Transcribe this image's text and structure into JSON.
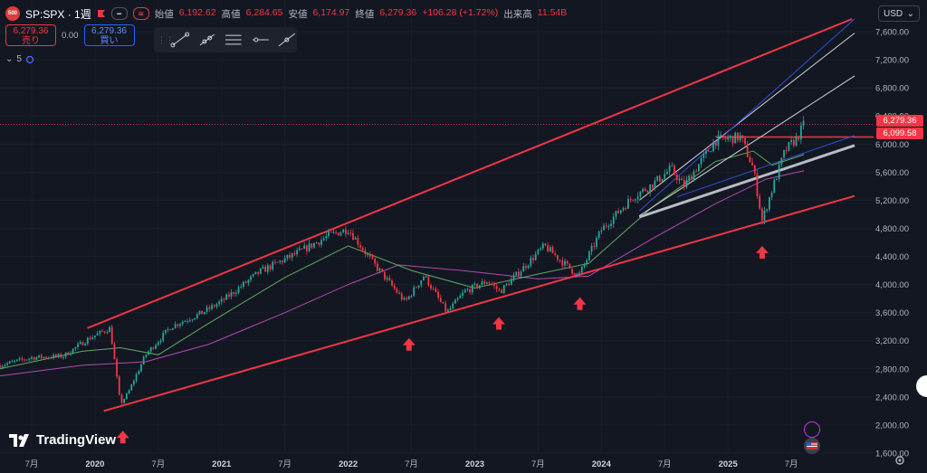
{
  "header": {
    "symbol_badge": "500",
    "symbol": "SP:SPX · 1週",
    "open_label": "始値",
    "open": "6,192.62",
    "high_label": "高値",
    "high": "6,284.65",
    "low_label": "安値",
    "low": "6,174.97",
    "close_label": "終値",
    "close": "6,279.36",
    "change": "+106.28 (+1.72%)",
    "volume_label": "出来高",
    "volume": "11.54B"
  },
  "trade": {
    "sell_price": "6,279.36",
    "sell_label": "売り",
    "spread": "0.00",
    "buy_price": "6,279.36",
    "buy_label": "買い"
  },
  "indicator_count": "5",
  "currency": "USD",
  "brand": "TradingView",
  "price_tags": {
    "last": "6,279.36",
    "line": "6,099.58"
  },
  "colors": {
    "up": "#26a69a",
    "down": "#f23645",
    "channel": "#f23645",
    "ma_fast": "#5faa5f",
    "ma_slow": "#b44bb0",
    "trend_blue": "#2f50d8",
    "trend_white": "#cfd3dc"
  },
  "chart_data": {
    "type": "candlestick",
    "timeframe": "1W",
    "x_ticks": [
      "7月",
      "2020",
      "7月",
      "2021",
      "7月",
      "2022",
      "7月",
      "2023",
      "7月",
      "2024",
      "7月",
      "2025",
      "7月"
    ],
    "x_tick_dates": [
      2019.5,
      2020.0,
      2020.5,
      2021.0,
      2021.5,
      2022.0,
      2022.5,
      2023.0,
      2023.5,
      2024.0,
      2024.5,
      2025.0,
      2025.5
    ],
    "y_ticks": [
      1600,
      2000,
      2400,
      2800,
      3200,
      3600,
      4000,
      4400,
      4800,
      5200,
      5600,
      6000,
      6400,
      6800,
      7200,
      7600
    ],
    "ylim": [
      1500,
      7800
    ],
    "xlim": [
      2019.25,
      2026.15
    ],
    "price_path": [
      [
        2019.25,
        2850
      ],
      [
        2019.5,
        2960
      ],
      [
        2019.75,
        2980
      ],
      [
        2019.95,
        3230
      ],
      [
        2020.12,
        3380
      ],
      [
        2020.2,
        2300
      ],
      [
        2020.26,
        2450
      ],
      [
        2020.4,
        3000
      ],
      [
        2020.6,
        3400
      ],
      [
        2020.85,
        3600
      ],
      [
        2021.0,
        3760
      ],
      [
        2021.3,
        4180
      ],
      [
        2021.6,
        4450
      ],
      [
        2021.85,
        4700
      ],
      [
        2022.0,
        4790
      ],
      [
        2022.2,
        4300
      ],
      [
        2022.45,
        3750
      ],
      [
        2022.6,
        4130
      ],
      [
        2022.78,
        3600
      ],
      [
        2022.92,
        3900
      ],
      [
        2023.1,
        4050
      ],
      [
        2023.2,
        3900
      ],
      [
        2023.55,
        4550
      ],
      [
        2023.82,
        4120
      ],
      [
        2024.0,
        4780
      ],
      [
        2024.25,
        5250
      ],
      [
        2024.4,
        5420
      ],
      [
        2024.55,
        5650
      ],
      [
        2024.65,
        5400
      ],
      [
        2024.9,
        6050
      ],
      [
        2025.1,
        6100
      ],
      [
        2025.2,
        5650
      ],
      [
        2025.27,
        4900
      ],
      [
        2025.32,
        5200
      ],
      [
        2025.45,
        5900
      ],
      [
        2025.55,
        6100
      ],
      [
        2025.6,
        6279
      ]
    ],
    "ma_fast": [
      [
        2019.25,
        2800
      ],
      [
        2019.9,
        3050
      ],
      [
        2020.2,
        3100
      ],
      [
        2020.5,
        3000
      ],
      [
        2020.9,
        3450
      ],
      [
        2021.5,
        4100
      ],
      [
        2022.0,
        4550
      ],
      [
        2022.5,
        4200
      ],
      [
        2023.0,
        3950
      ],
      [
        2023.5,
        4150
      ],
      [
        2023.9,
        4300
      ],
      [
        2024.4,
        5100
      ],
      [
        2024.9,
        5750
      ],
      [
        2025.2,
        5900
      ],
      [
        2025.35,
        5700
      ],
      [
        2025.6,
        5850
      ]
    ],
    "ma_slow": [
      [
        2019.25,
        2700
      ],
      [
        2019.9,
        2850
      ],
      [
        2020.4,
        2900
      ],
      [
        2020.9,
        3150
      ],
      [
        2021.5,
        3600
      ],
      [
        2022.0,
        4000
      ],
      [
        2022.4,
        4280
      ],
      [
        2022.9,
        4200
      ],
      [
        2023.5,
        4080
      ],
      [
        2023.9,
        4120
      ],
      [
        2024.4,
        4650
      ],
      [
        2024.9,
        5150
      ],
      [
        2025.3,
        5500
      ],
      [
        2025.6,
        5620
      ]
    ],
    "channel_upper": [
      [
        2019.94,
        3380
      ],
      [
        2025.98,
        7780
      ]
    ],
    "channel_lower": [
      [
        2020.07,
        2200
      ],
      [
        2026.0,
        5260
      ]
    ],
    "trend_white_1": [
      [
        2024.3,
        5200
      ],
      [
        2026.0,
        7580
      ]
    ],
    "trend_white_2": [
      [
        2024.3,
        4980
      ],
      [
        2026.0,
        6970
      ]
    ],
    "trend_white_3": [
      [
        2024.3,
        4960
      ],
      [
        2026.0,
        5980
      ]
    ],
    "trend_blue_1": [
      [
        2024.3,
        5050
      ],
      [
        2026.0,
        7780
      ]
    ],
    "trend_blue_2": [
      [
        2024.6,
        5250
      ],
      [
        2026.0,
        6120
      ]
    ],
    "horizontal_line": 6099.58,
    "arrows": [
      2020.22,
      2022.48,
      2023.19,
      2023.83,
      2025.27
    ]
  }
}
